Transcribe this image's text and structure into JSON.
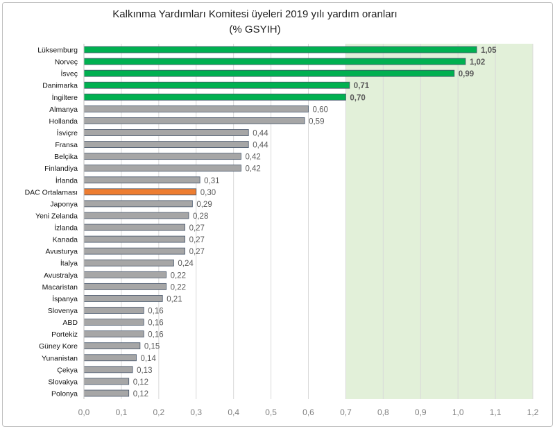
{
  "chart_data": {
    "type": "bar",
    "orientation": "horizontal",
    "title": "Kalkınma Yardımları Komitesi üyeleri 2019 yılı yardım oranları",
    "subtitle": "(% GSYIH)",
    "xlim": [
      0,
      1.2
    ],
    "x_ticks": [
      "0,0",
      "0,1",
      "0,2",
      "0,3",
      "0,4",
      "0,5",
      "0,6",
      "0,7",
      "0,8",
      "0,9",
      "1,0",
      "1,1",
      "1,2"
    ],
    "grid": true,
    "categories": [
      "Lüksemburg",
      "Norveç",
      "İsveç",
      "Danimarka",
      "İngiltere",
      "Almanya",
      "Hollanda",
      "İsviçre",
      "Fransa",
      "Belçika",
      "Finlandiya",
      "İrlanda",
      "DAC Ortalaması",
      "Japonya",
      "Yeni Zelanda",
      "İzlanda",
      "Kanada",
      "Avusturya",
      "İtalya",
      "Avustralya",
      "Macaristan",
      "İspanya",
      "Slovenya",
      "ABD",
      "Portekiz",
      "Güney Kore",
      "Yunanistan",
      "Çekya",
      "Slovakya",
      "Polonya"
    ],
    "values": [
      1.05,
      1.02,
      0.99,
      0.71,
      0.7,
      0.6,
      0.59,
      0.44,
      0.44,
      0.42,
      0.42,
      0.31,
      0.3,
      0.29,
      0.28,
      0.27,
      0.27,
      0.27,
      0.24,
      0.22,
      0.22,
      0.21,
      0.16,
      0.16,
      0.16,
      0.15,
      0.14,
      0.13,
      0.12,
      0.12
    ],
    "value_labels": [
      "1,05",
      "1,02",
      "0,99",
      "0,71",
      "0,70",
      "0,60",
      "0,59",
      "0,44",
      "0,44",
      "0,42",
      "0,42",
      "0,31",
      "0,30",
      "0,29",
      "0,28",
      "0,27",
      "0,27",
      "0,27",
      "0,24",
      "0,22",
      "0,22",
      "0,21",
      "0,16",
      "0,16",
      "0,16",
      "0,15",
      "0,14",
      "0,13",
      "0,12",
      "0,12"
    ],
    "bar_colors": [
      "#00b050",
      "#00b050",
      "#00b050",
      "#00b050",
      "#00b050",
      "#a6a6a6",
      "#a6a6a6",
      "#a6a6a6",
      "#a6a6a6",
      "#a6a6a6",
      "#a6a6a6",
      "#a6a6a6",
      "#ed7d31",
      "#a6a6a6",
      "#a6a6a6",
      "#a6a6a6",
      "#a6a6a6",
      "#a6a6a6",
      "#a6a6a6",
      "#a6a6a6",
      "#a6a6a6",
      "#a6a6a6",
      "#a6a6a6",
      "#a6a6a6",
      "#a6a6a6",
      "#a6a6a6",
      "#a6a6a6",
      "#a6a6a6",
      "#a6a6a6",
      "#a6a6a6"
    ],
    "bar_outline_color": "#44546a",
    "bold_value_labels": [
      true,
      true,
      true,
      true,
      true,
      false,
      false,
      false,
      false,
      false,
      false,
      false,
      false,
      false,
      false,
      false,
      false,
      false,
      false,
      false,
      false,
      false,
      false,
      false,
      false,
      false,
      false,
      false,
      false,
      false
    ],
    "shaded_region": {
      "from": 0.7,
      "to": 1.2,
      "color": "#e2f0d9"
    }
  }
}
